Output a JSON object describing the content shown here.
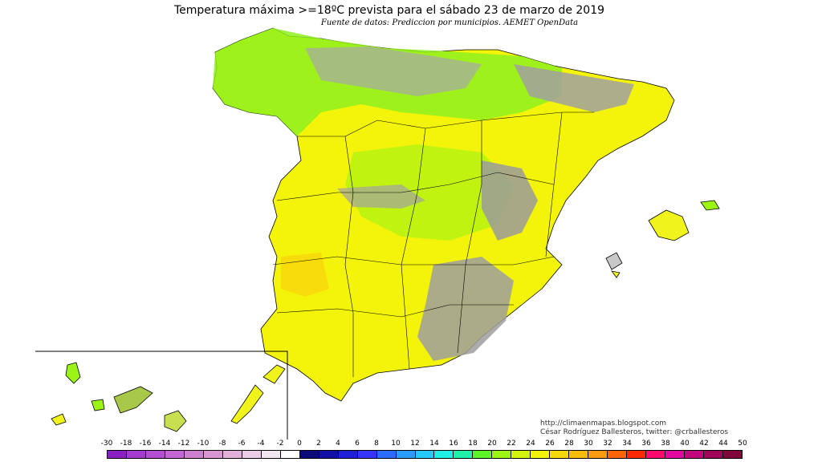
{
  "map": {
    "title": "Temperatura máxima >=18ºC prevista para el sábado 23 de marzo de 2019",
    "subtitle": "Fuente de datos: Prediccion por municipios. AEMET OpenData",
    "credits": {
      "url": "http://climaenmapas.blogspot.com",
      "author": "César Rodríguez Ballesteros, twitter: @crballesteros"
    },
    "regions": [
      {
        "name": "Peninsula",
        "fill": "#f4f40a"
      },
      {
        "name": "Baleares",
        "fill": "#f0f41a"
      },
      {
        "name": "Canarias",
        "fill": "#e8f020"
      }
    ]
  },
  "legend": {
    "ticks": [
      "-30",
      "-18",
      "-16",
      "-14",
      "-12",
      "-10",
      "-8",
      "-6",
      "-4",
      "-2",
      "0",
      "2",
      "4",
      "6",
      "8",
      "10",
      "12",
      "14",
      "16",
      "18",
      "20",
      "22",
      "24",
      "26",
      "28",
      "30",
      "32",
      "34",
      "36",
      "38",
      "40",
      "42",
      "44",
      "50"
    ],
    "colors": [
      "#8a1fc4",
      "#a43ad0",
      "#b44fd4",
      "#c466d4",
      "#cf7fcf",
      "#d996d2",
      "#e2b0da",
      "#ebcce6",
      "#f1e6f0",
      "#ffffff",
      "#0a0a7a",
      "#1010a8",
      "#1f1fd8",
      "#3434ff",
      "#2a6cff",
      "#2a9cff",
      "#25c8ff",
      "#22eee8",
      "#20f0a8",
      "#5ef228",
      "#9cf414",
      "#d2f30c",
      "#f4f40a",
      "#f6d70a",
      "#f8bc0c",
      "#fa9a10",
      "#ff6400",
      "#ff2800",
      "#ff0a6e",
      "#e0089e",
      "#c0067a",
      "#a0045a",
      "#80063a"
    ]
  }
}
